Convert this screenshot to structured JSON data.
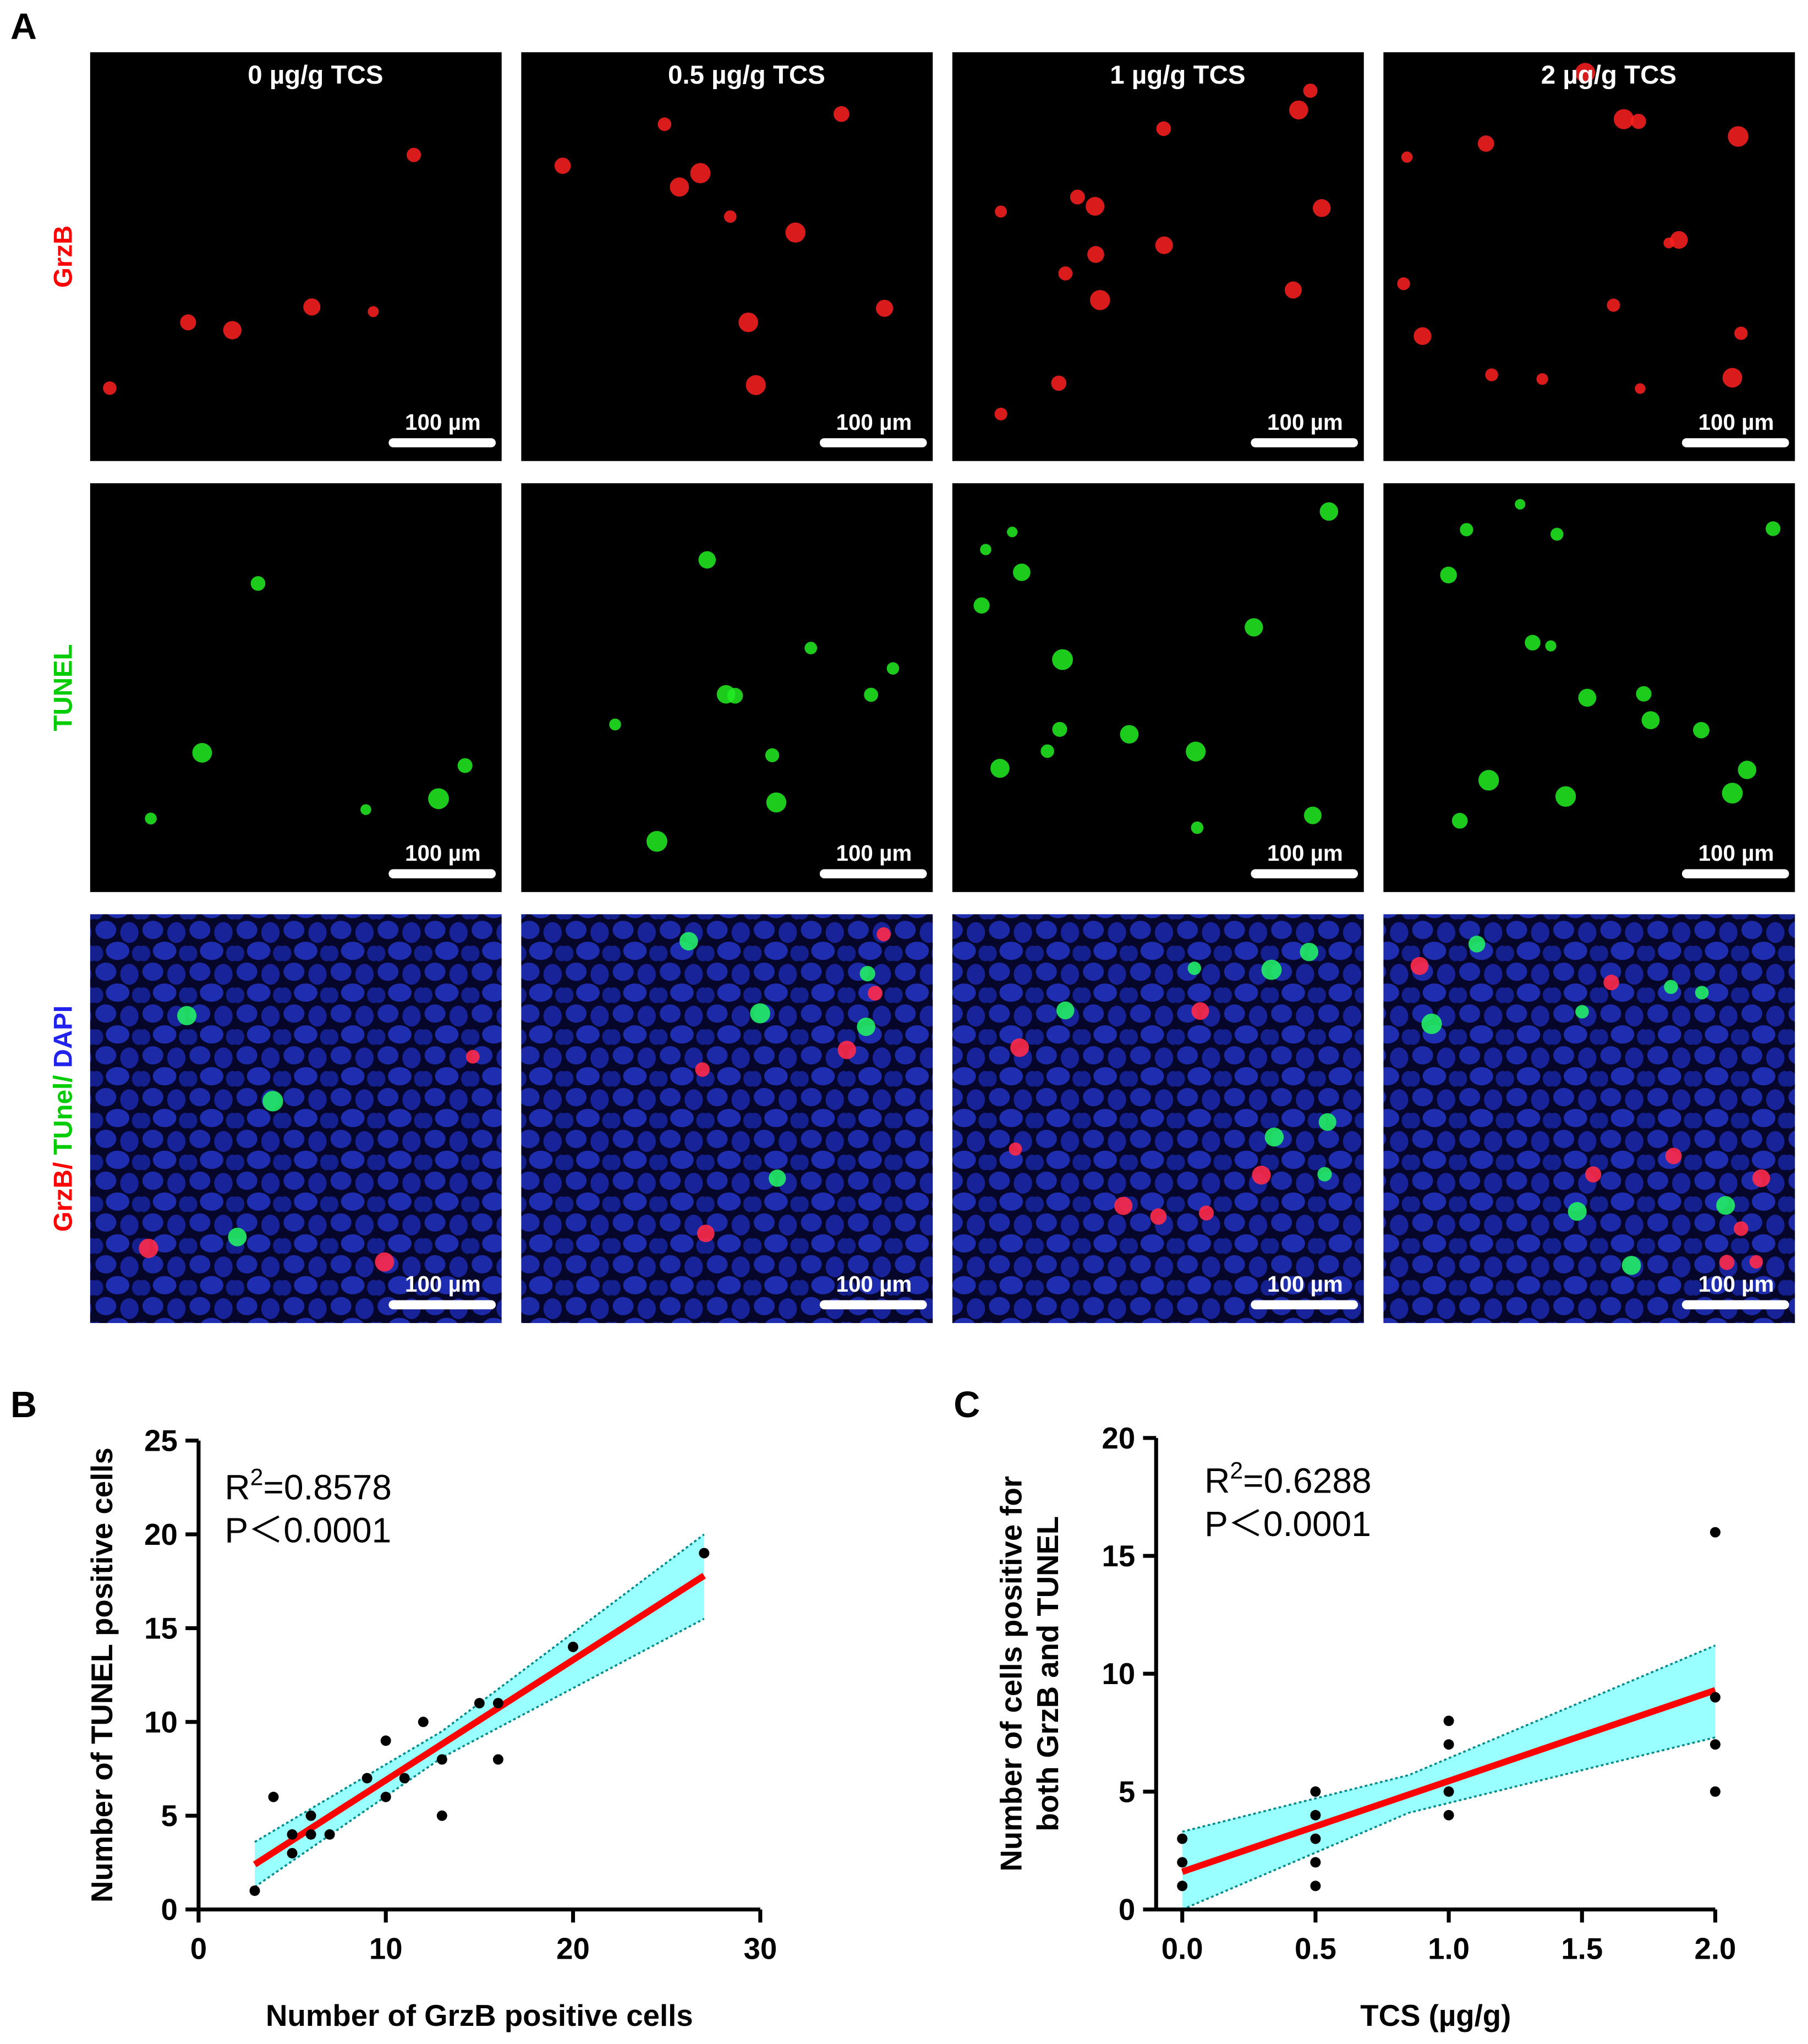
{
  "panel_a": {
    "label": "A",
    "columns": [
      "0 µg/g TCS",
      "0.5 µg/g TCS",
      "1 µg/g TCS",
      "2 µg/g TCS"
    ],
    "rows": [
      [
        "GrzB"
      ],
      [
        "TUNEL"
      ],
      [
        "GrzB/",
        " TUnel/",
        " DAPI"
      ]
    ],
    "scale_bar": "100 µm"
  },
  "chart_data": [
    {
      "type": "scatter",
      "panel_label": "B",
      "xlabel": "Number of GrzB positive cells",
      "ylabel": [
        "Number of TUNEL positive cells"
      ],
      "annotation": {
        "base": "R",
        "sup": "2",
        "rest": "=0.8578",
        "p": "P＜0.0001"
      },
      "x": [
        3,
        4,
        5,
        5,
        6,
        6,
        7,
        9,
        10,
        10,
        11,
        12,
        13,
        13,
        15,
        16,
        16,
        20,
        27
      ],
      "values": [
        1,
        6,
        4,
        3,
        5,
        4,
        4,
        7,
        9,
        6,
        7,
        10,
        8,
        5,
        11,
        11,
        8,
        14,
        19
      ],
      "color": "#000000",
      "fit_line": {
        "x": [
          3,
          27
        ],
        "values": [
          2.4,
          17.8
        ],
        "color": "#ff0000"
      },
      "confidence_band": {
        "x": [
          3,
          13,
          27
        ],
        "lower": [
          1.2,
          8.1,
          15.5
        ],
        "upper": [
          3.6,
          9.5,
          20.0
        ],
        "color": "#99ffff",
        "edge_color": "#008b8b"
      },
      "xlim": [
        0,
        30
      ],
      "xticks": [
        0,
        10,
        20,
        30
      ],
      "ylim": [
        0,
        25
      ],
      "yticks": [
        0,
        5,
        10,
        15,
        20,
        25
      ]
    },
    {
      "type": "scatter",
      "panel_label": "C",
      "xlabel": "TCS (µg/g)",
      "ylabel": [
        "Number of cells positive for",
        "both GrzB and TUNEL"
      ],
      "annotation": {
        "base": "R",
        "sup": "2",
        "rest": "=0.6288",
        "p": "P＜0.0001"
      },
      "x": [
        0,
        0,
        0,
        0.5,
        0.5,
        0.5,
        0.5,
        0.5,
        1,
        1,
        1,
        1,
        2,
        2,
        2,
        2
      ],
      "values": [
        3,
        2,
        1,
        5,
        4,
        3,
        2,
        1,
        8,
        7,
        5,
        4,
        16,
        9,
        7,
        5
      ],
      "color": "#000000",
      "fit_line": {
        "x": [
          0,
          2
        ],
        "values": [
          1.6,
          9.3
        ],
        "color": "#ff0000"
      },
      "confidence_band": {
        "x": [
          0,
          0.85,
          2
        ],
        "lower": [
          0,
          4.1,
          7.3
        ],
        "upper": [
          3.3,
          5.7,
          11.2
        ],
        "color": "#99ffff",
        "edge_color": "#008b8b"
      },
      "xlim": [
        0,
        2
      ],
      "xticks": [
        {
          "value": 0,
          "label": "0.0"
        },
        {
          "value": 0.5,
          "label": "0.5"
        },
        {
          "value": 1,
          "label": "1.0"
        },
        {
          "value": 1.5,
          "label": "1.5"
        },
        {
          "value": 2,
          "label": "2.0"
        }
      ],
      "ylim": [
        0,
        20
      ],
      "yticks": [
        0,
        5,
        10,
        15,
        20
      ]
    }
  ]
}
